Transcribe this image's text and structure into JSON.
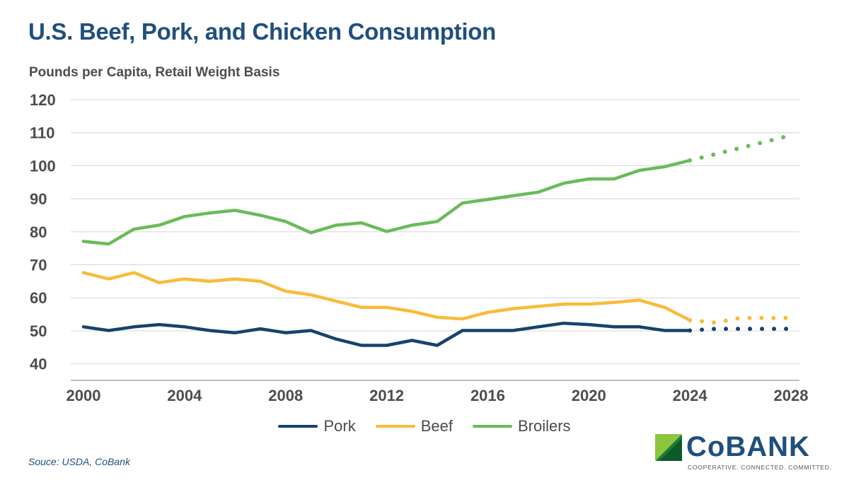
{
  "title": "U.S. Beef, Pork, and Chicken Consumption",
  "subtitle": "Pounds per Capita, Retail Weight Basis",
  "source": "Souce: USDA, CoBank",
  "logo": {
    "wordmark": "CoBANK",
    "tagline": "COOPERATIVE. CONNECTED. COMMITTED."
  },
  "colors": {
    "title": "#1f4f7e",
    "pork": "#15436f",
    "beef": "#f8bb3a",
    "broilers": "#6abb5a",
    "grid": "#d4d4d4",
    "axis_text": "#4d4d4d"
  },
  "chart_data": {
    "type": "line",
    "title": "U.S. Beef, Pork, and Chicken Consumption",
    "ylabel": "Pounds per Capita, Retail Weight Basis",
    "ylim": [
      35,
      120
    ],
    "yticks": [
      40,
      50,
      60,
      70,
      80,
      90,
      100,
      110,
      120
    ],
    "xlim": [
      2000,
      2028
    ],
    "xticks": [
      2000,
      2004,
      2008,
      2012,
      2016,
      2020,
      2024,
      2028
    ],
    "grid": true,
    "legend_position": "bottom",
    "actual_end_year": 2024,
    "forecast_style": "dotted",
    "x": [
      2000,
      2001,
      2002,
      2003,
      2004,
      2005,
      2006,
      2007,
      2008,
      2009,
      2010,
      2011,
      2012,
      2013,
      2014,
      2015,
      2016,
      2017,
      2018,
      2019,
      2020,
      2021,
      2022,
      2023,
      2024,
      2025,
      2026,
      2027,
      2028
    ],
    "series": [
      {
        "name": "Pork",
        "color_key": "pork",
        "values": [
          51.2,
          50.1,
          51.2,
          51.9,
          51.2,
          50.1,
          49.4,
          50.6,
          49.4,
          50.1,
          47.5,
          45.6,
          45.6,
          47.1,
          45.6,
          50.1,
          50.1,
          50.1,
          51.2,
          52.3,
          51.9,
          51.2,
          51.2,
          50.1,
          50.1,
          50.6,
          50.6,
          50.6,
          50.6
        ]
      },
      {
        "name": "Beef",
        "color_key": "beef",
        "values": [
          67.6,
          65.7,
          67.6,
          64.6,
          65.7,
          65.0,
          65.7,
          65.0,
          62.0,
          60.9,
          59.0,
          57.1,
          57.1,
          55.9,
          54.1,
          53.6,
          55.6,
          56.7,
          57.4,
          58.1,
          58.1,
          58.6,
          59.3,
          57.1,
          53.2,
          52.5,
          53.9,
          53.9,
          53.9
        ]
      },
      {
        "name": "Broilers",
        "color_key": "broilers",
        "values": [
          77.1,
          76.3,
          80.8,
          82.0,
          84.6,
          85.7,
          86.5,
          85.0,
          83.1,
          79.7,
          82.0,
          82.7,
          80.1,
          82.0,
          83.1,
          88.7,
          89.8,
          90.9,
          92.0,
          94.7,
          96.0,
          96.0,
          98.6,
          99.7,
          101.6,
          103.5,
          105.4,
          107.3,
          109.2
        ]
      }
    ]
  }
}
